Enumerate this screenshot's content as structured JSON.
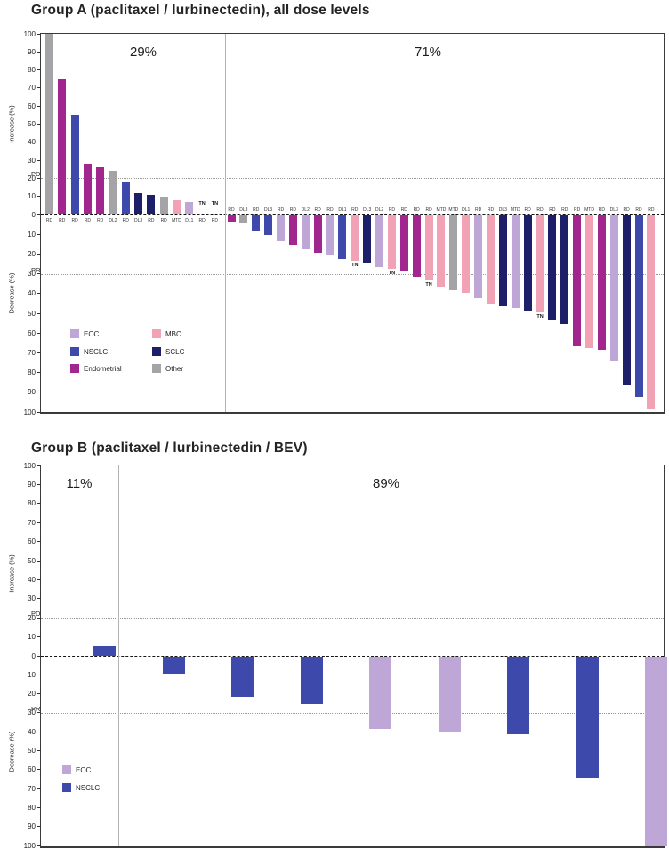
{
  "colors": {
    "EOC": "#bea7d6",
    "NSCLC": "#3d4aac",
    "Endometrial": "#a1268e",
    "MBC": "#f1a3b5",
    "SCLC": "#1d2069",
    "Other": "#a4a4a7"
  },
  "chart_data": [
    {
      "type": "bar",
      "id": "group-a",
      "title": "Group A (paclitaxel / lurbinectedin), all dose levels",
      "ylabel_top": "Increase (%)",
      "ylabel_bottom": "Decrease (%)",
      "ylim": [
        -100,
        100
      ],
      "yticks": [
        100,
        90,
        80,
        70,
        60,
        50,
        40,
        30,
        20,
        10,
        0,
        -10,
        -20,
        -30,
        -40,
        -50,
        -60,
        -70,
        -80,
        -90,
        -100
      ],
      "grid": "reference lines only",
      "legend_position": "lower-left inside plot",
      "reference_lines": [
        {
          "label": "PD",
          "y": 20
        },
        {
          "label": "PR",
          "y": -30
        }
      ],
      "sections": [
        {
          "label": "29%",
          "bars": [
            {
              "value": 100,
              "type": "Other",
              "dose": "RD"
            },
            {
              "value": 75,
              "type": "Endometrial",
              "dose": "RD"
            },
            {
              "value": 55,
              "type": "NSCLC",
              "dose": "RD"
            },
            {
              "value": 28,
              "type": "Endometrial",
              "dose": "RD"
            },
            {
              "value": 26,
              "type": "Endometrial",
              "dose": "RD"
            },
            {
              "value": 24,
              "type": "Other",
              "dose": "DL2"
            },
            {
              "value": 18,
              "type": "NSCLC",
              "dose": "RD"
            },
            {
              "value": 12,
              "type": "SCLC",
              "dose": "DL3"
            },
            {
              "value": 11,
              "type": "SCLC",
              "dose": "RD"
            },
            {
              "value": 10,
              "type": "Other",
              "dose": "RD"
            },
            {
              "value": 8,
              "type": "MBC",
              "dose": "MTD"
            },
            {
              "value": 7,
              "type": "EOC",
              "dose": "DL1"
            },
            {
              "value": 0,
              "type": null,
              "dose": "RD",
              "tn": true
            },
            {
              "value": 0,
              "type": null,
              "dose": "RD",
              "tn": true
            }
          ]
        },
        {
          "label": "71%",
          "bars": [
            {
              "value": -3,
              "type": "Endometrial",
              "dose": "RD"
            },
            {
              "value": -4,
              "type": "Other",
              "dose": "DL3"
            },
            {
              "value": -8,
              "type": "NSCLC",
              "dose": "RD"
            },
            {
              "value": -10,
              "type": "NSCLC",
              "dose": "DL3"
            },
            {
              "value": -13,
              "type": "EOC",
              "dose": "RD"
            },
            {
              "value": -15,
              "type": "Endometrial",
              "dose": "RD"
            },
            {
              "value": -17,
              "type": "EOC",
              "dose": "DL2"
            },
            {
              "value": -19,
              "type": "Endometrial",
              "dose": "RD"
            },
            {
              "value": -20,
              "type": "EOC",
              "dose": "RD"
            },
            {
              "value": -22,
              "type": "NSCLC",
              "dose": "DL1"
            },
            {
              "value": -23,
              "type": "MBC",
              "dose": "RD",
              "tn": true
            },
            {
              "value": -24,
              "type": "SCLC",
              "dose": "DL3"
            },
            {
              "value": -26,
              "type": "EOC",
              "dose": "DL2"
            },
            {
              "value": -27,
              "type": "MBC",
              "dose": "RD",
              "tn": true
            },
            {
              "value": -28,
              "type": "Endometrial",
              "dose": "RD"
            },
            {
              "value": -31,
              "type": "Endometrial",
              "dose": "RD"
            },
            {
              "value": -33,
              "type": "MBC",
              "dose": "RD",
              "tn": true
            },
            {
              "value": -36,
              "type": "MBC",
              "dose": "MTD"
            },
            {
              "value": -38,
              "type": "Other",
              "dose": "MTD"
            },
            {
              "value": -39,
              "type": "MBC",
              "dose": "DL1"
            },
            {
              "value": -42,
              "type": "EOC",
              "dose": "RD"
            },
            {
              "value": -45,
              "type": "MBC",
              "dose": "RD"
            },
            {
              "value": -46,
              "type": "SCLC",
              "dose": "DL3"
            },
            {
              "value": -47,
              "type": "EOC",
              "dose": "MTD"
            },
            {
              "value": -48,
              "type": "SCLC",
              "dose": "RD"
            },
            {
              "value": -49,
              "type": "MBC",
              "dose": "RD",
              "tn": true
            },
            {
              "value": -53,
              "type": "SCLC",
              "dose": "RD"
            },
            {
              "value": -55,
              "type": "SCLC",
              "dose": "RD"
            },
            {
              "value": -66,
              "type": "Endometrial",
              "dose": "RD"
            },
            {
              "value": -67,
              "type": "MBC",
              "dose": "MTD"
            },
            {
              "value": -68,
              "type": "Endometrial",
              "dose": "RD"
            },
            {
              "value": -74,
              "type": "EOC",
              "dose": "DL3"
            },
            {
              "value": -86,
              "type": "SCLC",
              "dose": "RD"
            },
            {
              "value": -92,
              "type": "NSCLC",
              "dose": "RD"
            },
            {
              "value": -98,
              "type": "MBC",
              "dose": "RD"
            }
          ]
        }
      ],
      "legend_columns": [
        [
          "EOC",
          "NSCLC",
          "Endometrial"
        ],
        [
          "MBC",
          "SCLC",
          "Other"
        ]
      ]
    },
    {
      "type": "bar",
      "id": "group-b",
      "title": "Group B (paclitaxel / lurbinectedin / BEV)",
      "ylabel_top": "Increase (%)",
      "ylabel_bottom": "Decrease (%)",
      "ylim": [
        -100,
        100
      ],
      "yticks": [
        100,
        90,
        80,
        70,
        60,
        50,
        40,
        30,
        20,
        10,
        0,
        -10,
        -20,
        -30,
        -40,
        -50,
        -60,
        -70,
        -80,
        -90,
        -100
      ],
      "grid": "reference lines only",
      "legend_position": "lower-left inside plot",
      "reference_lines": [
        {
          "label": "PD",
          "y": 20
        },
        {
          "label": "PR",
          "y": -30
        }
      ],
      "sections": [
        {
          "label": "11%",
          "bars": [
            {
              "value": 5,
              "type": "NSCLC"
            }
          ]
        },
        {
          "label": "89%",
          "bars": [
            {
              "value": -9,
              "type": "NSCLC"
            },
            {
              "value": -21,
              "type": "NSCLC"
            },
            {
              "value": -25,
              "type": "NSCLC"
            },
            {
              "value": -38,
              "type": "EOC"
            },
            {
              "value": -40,
              "type": "EOC"
            },
            {
              "value": -41,
              "type": "NSCLC"
            },
            {
              "value": -64,
              "type": "NSCLC"
            },
            {
              "value": -100,
              "type": "EOC"
            }
          ]
        }
      ],
      "legend_columns": [
        [
          "EOC",
          "NSCLC"
        ]
      ]
    }
  ]
}
